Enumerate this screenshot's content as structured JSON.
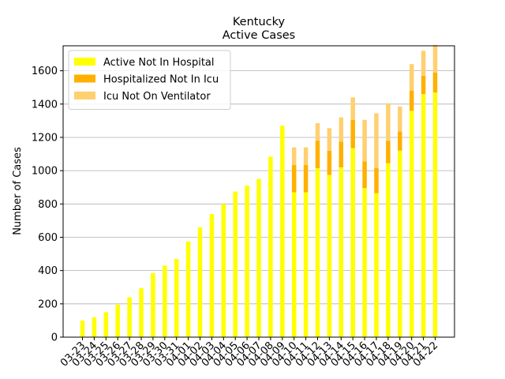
{
  "chart_data": {
    "type": "bar",
    "stacked": true,
    "title": "Kentucky",
    "subtitle": "Active Cases",
    "xlabel": "",
    "ylabel": "Number of Cases",
    "ylim": [
      0,
      1750
    ],
    "yticks": [
      0,
      200,
      400,
      600,
      800,
      1000,
      1200,
      1400,
      1600
    ],
    "grid": "horizontal",
    "legend_position": "top-left",
    "categories": [
      "03-23",
      "03-24",
      "03-25",
      "03-26",
      "03-27",
      "03-28",
      "03-29",
      "03-30",
      "03-31",
      "04-01",
      "04-02",
      "04-03",
      "04-04",
      "04-05",
      "04-06",
      "04-07",
      "04-08",
      "04-09",
      "04-10",
      "04-11",
      "04-12",
      "04-13",
      "04-14",
      "04-15",
      "04-16",
      "04-17",
      "04-18",
      "04-19",
      "04-20",
      "04-21",
      "04-22"
    ],
    "series": [
      {
        "name": "Active Not In Hospital",
        "color": "#ffff00",
        "values": [
          100,
          120,
          150,
          195,
          240,
          295,
          385,
          430,
          470,
          575,
          660,
          740,
          800,
          875,
          910,
          950,
          1085,
          1270,
          870,
          870,
          1015,
          975,
          1020,
          1135,
          895,
          865,
          1045,
          1120,
          1360,
          1460,
          1470
        ]
      },
      {
        "name": "Hospitalized Not In Icu",
        "color": "#ffb000",
        "values": [
          0,
          0,
          0,
          0,
          0,
          0,
          0,
          0,
          0,
          0,
          0,
          0,
          0,
          0,
          0,
          0,
          0,
          0,
          165,
          165,
          165,
          145,
          155,
          170,
          160,
          150,
          135,
          115,
          120,
          110,
          120
        ]
      },
      {
        "name": "Icu Not On Ventilator",
        "color": "#ffd070",
        "values": [
          0,
          0,
          0,
          0,
          0,
          0,
          0,
          0,
          0,
          0,
          0,
          0,
          0,
          0,
          0,
          0,
          0,
          0,
          105,
          105,
          105,
          135,
          145,
          135,
          250,
          330,
          225,
          150,
          160,
          150,
          165
        ]
      }
    ]
  }
}
